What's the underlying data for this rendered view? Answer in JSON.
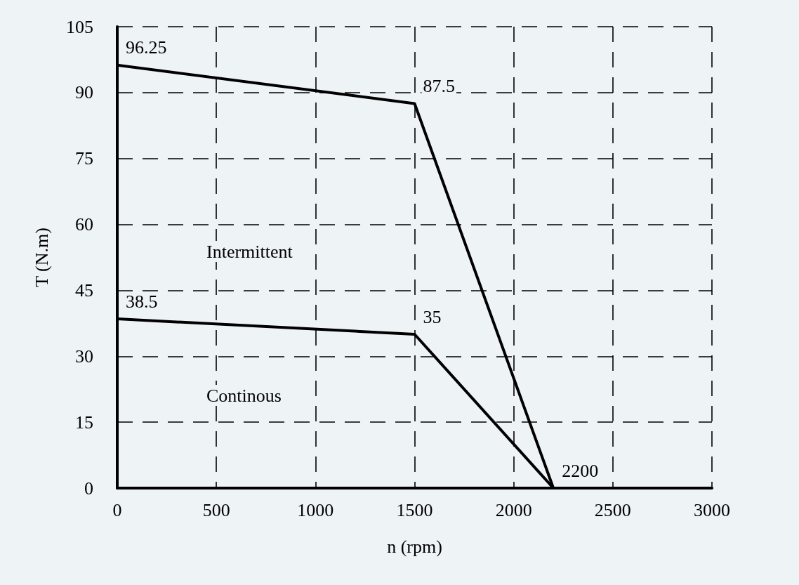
{
  "chart_data": {
    "type": "line",
    "xlabel": "n (rpm)",
    "ylabel": "T (N.m)",
    "series": [
      {
        "color": "#000000",
        "x": [
          0,
          1500,
          2200
        ],
        "values": [
          96.25,
          87.5,
          0
        ]
      },
      {
        "color": "#000000",
        "x": [
          0,
          1500,
          2200
        ],
        "values": [
          38.5,
          35,
          0
        ]
      }
    ],
    "annotations": [
      "Intermittent",
      "Continous",
      {
        "text": "96.25",
        "x": 0,
        "y": 96.25
      },
      {
        "text": "87.5",
        "x": 1500,
        "y": 87.5
      },
      {
        "text": "38.5",
        "x": 0,
        "y": 38.5
      },
      {
        "text": "35",
        "x": 1500,
        "y": 35
      },
      {
        "text": "2200",
        "x": 2200,
        "y": 0
      }
    ],
    "xlim": [
      0,
      3000
    ],
    "xticks": [
      0,
      500,
      1000,
      1500,
      2000,
      2500,
      3000
    ],
    "ylim": [
      0,
      105
    ],
    "yticks": [
      0,
      15,
      30,
      45,
      60,
      75,
      90,
      105
    ],
    "grid": true,
    "marker": "none",
    "line_style": "solid"
  }
}
